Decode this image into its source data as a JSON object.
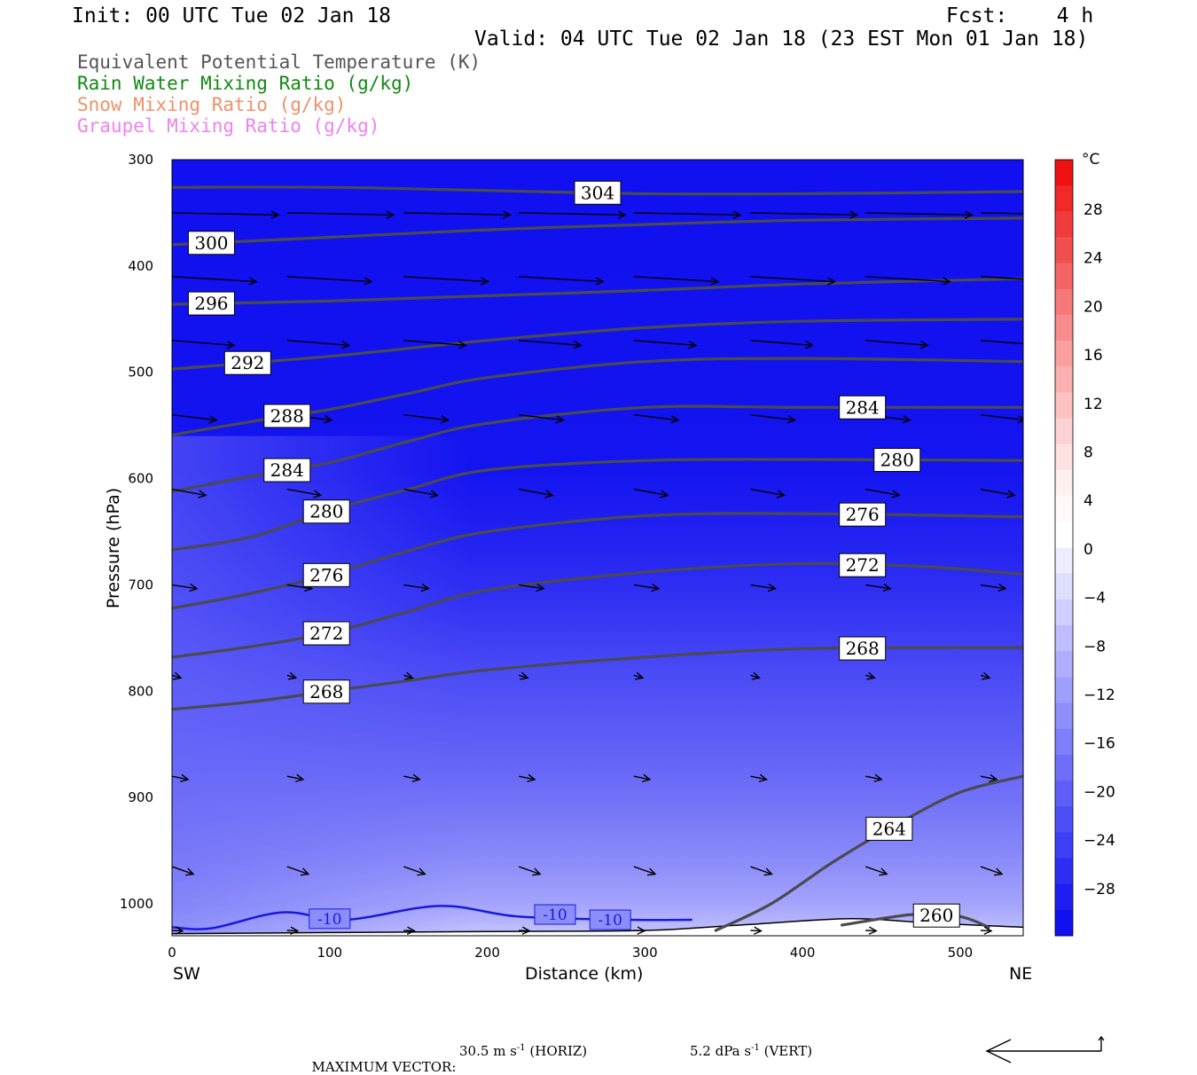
{
  "header": {
    "init": "Init: 00 UTC Tue 02 Jan 18",
    "fcst": "Fcst:    4 h",
    "valid": "Valid: 04 UTC Tue 02 Jan 18 (23 EST Mon 01 Jan 18)"
  },
  "legend": [
    {
      "text": "Equivalent Potential Temperature (K)",
      "color": "#555555"
    },
    {
      "text": "Rain Water Mixing Ratio (g/kg)",
      "color": "#128a12"
    },
    {
      "text": "Snow Mixing Ratio (g/kg)",
      "color": "#f0906a"
    },
    {
      "text": "Graupel Mixing Ratio (g/kg)",
      "color": "#ee82ee"
    }
  ],
  "chart_data": {
    "type": "cross-section",
    "x_axis": {
      "label": "Distance (km)",
      "range": [
        0,
        540
      ],
      "ticks": [
        0,
        100,
        200,
        300,
        400,
        500
      ],
      "left_end_label": "SW",
      "right_end_label": "NE"
    },
    "y_axis": {
      "label": "Pressure (hPa)",
      "range": [
        300,
        1030
      ],
      "ticks": [
        300,
        400,
        500,
        600,
        700,
        800,
        900,
        1000
      ]
    },
    "color_bar": {
      "unit": "°C",
      "labels": [
        "28",
        "24",
        "20",
        "16",
        "12",
        "8",
        "4",
        "0",
        "−4",
        "−8",
        "−12",
        "−16",
        "−20",
        "−24",
        "−28"
      ],
      "warm_colors": [
        "#ee1111",
        "#f02828",
        "#f03c3c",
        "#f25050",
        "#f46464",
        "#f67878",
        "#f88c8c",
        "#fa9e9e",
        "#fbb0b0",
        "#fcc2c2",
        "#fdd2d2",
        "#fee2e2",
        "#fff0f0",
        "#fffafa"
      ],
      "cold_colors": [
        "#ffffff",
        "#ececff",
        "#dedefe",
        "#ceceff",
        "#bebefe",
        "#aeaefd",
        "#9e9efc",
        "#8e8efb",
        "#7e7efa",
        "#6e6ef9",
        "#5e5ef8",
        "#4e4ef7",
        "#3e3ef6",
        "#2e2ef4",
        "#1e1ef2",
        "#1010f0"
      ]
    },
    "theta_e_contours": [
      {
        "value": 304,
        "points": [
          [
            0,
            326
          ],
          [
            100,
            326
          ],
          [
            200,
            329
          ],
          [
            300,
            332
          ],
          [
            400,
            332
          ],
          [
            540,
            330
          ]
        ]
      },
      {
        "value": 300,
        "points": [
          [
            0,
            380
          ],
          [
            100,
            373
          ],
          [
            200,
            366
          ],
          [
            300,
            361
          ],
          [
            400,
            357
          ],
          [
            540,
            355
          ]
        ]
      },
      {
        "value": 296,
        "points": [
          [
            0,
            436
          ],
          [
            100,
            433
          ],
          [
            200,
            428
          ],
          [
            300,
            423
          ],
          [
            400,
            417
          ],
          [
            540,
            412
          ]
        ]
      },
      {
        "value": 292,
        "points": [
          [
            0,
            497
          ],
          [
            100,
            485
          ],
          [
            200,
            470
          ],
          [
            300,
            458
          ],
          [
            400,
            452
          ],
          [
            540,
            450
          ]
        ]
      },
      {
        "value": 288,
        "points": [
          [
            0,
            559
          ],
          [
            60,
            544
          ],
          [
            100,
            535
          ],
          [
            150,
            520
          ],
          [
            200,
            505
          ],
          [
            300,
            490
          ],
          [
            400,
            487
          ],
          [
            540,
            490
          ]
        ]
      },
      {
        "value": 284,
        "points": [
          [
            0,
            612
          ],
          [
            50,
            598
          ],
          [
            100,
            585
          ],
          [
            150,
            565
          ],
          [
            200,
            548
          ],
          [
            300,
            533
          ],
          [
            400,
            533
          ],
          [
            540,
            533
          ]
        ]
      },
      {
        "value": 280,
        "points": [
          [
            0,
            667
          ],
          [
            50,
            655
          ],
          [
            100,
            630
          ],
          [
            150,
            610
          ],
          [
            200,
            592
          ],
          [
            300,
            583
          ],
          [
            400,
            582
          ],
          [
            540,
            583
          ]
        ]
      },
      {
        "value": 276,
        "points": [
          [
            0,
            722
          ],
          [
            50,
            708
          ],
          [
            100,
            690
          ],
          [
            150,
            668
          ],
          [
            200,
            650
          ],
          [
            300,
            635
          ],
          [
            400,
            633
          ],
          [
            540,
            636
          ]
        ]
      },
      {
        "value": 272,
        "points": [
          [
            0,
            768
          ],
          [
            50,
            758
          ],
          [
            100,
            745
          ],
          [
            150,
            725
          ],
          [
            200,
            705
          ],
          [
            300,
            688
          ],
          [
            400,
            680
          ],
          [
            480,
            683
          ],
          [
            540,
            690
          ]
        ]
      },
      {
        "value": 268,
        "points": [
          [
            0,
            817
          ],
          [
            50,
            810
          ],
          [
            100,
            800
          ],
          [
            150,
            790
          ],
          [
            200,
            780
          ],
          [
            300,
            768
          ],
          [
            400,
            760
          ],
          [
            540,
            759
          ]
        ]
      },
      {
        "value": 264,
        "points": [
          [
            345,
            1025
          ],
          [
            380,
            1000
          ],
          [
            420,
            960
          ],
          [
            460,
            925
          ],
          [
            500,
            895
          ],
          [
            540,
            880
          ]
        ]
      },
      {
        "value": 260,
        "points": [
          [
            425,
            1020
          ],
          [
            470,
            1010
          ],
          [
            500,
            1012
          ],
          [
            518,
            1022
          ]
        ]
      }
    ],
    "rain_contour_value": -10,
    "vector_rows_hpa": [
      350,
      410,
      470,
      540,
      610,
      700,
      785,
      880,
      965,
      1025
    ],
    "maximum_vector": {
      "label": "MAXIMUM VECTOR:",
      "horiz_value": "30.5",
      "horiz_unit": "m s",
      "horiz_tag": "(HORIZ)",
      "vert_value": "5.2",
      "vert_unit": "dPa s",
      "vert_tag": "(VERT)",
      "exponent": "-1"
    }
  }
}
